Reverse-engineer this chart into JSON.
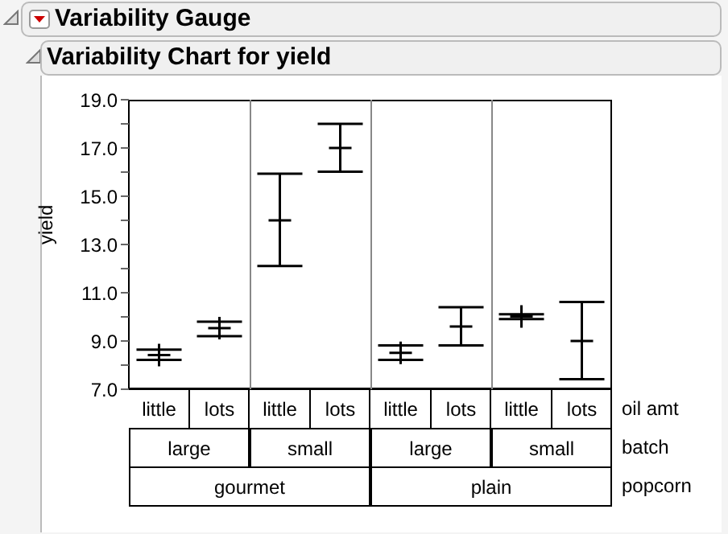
{
  "chart_data": {
    "type": "scatter",
    "title": "Variability Gauge",
    "subtitle": "Variability Chart for yield",
    "ylabel": "yield",
    "xlabel": "oil amt",
    "categories": [
      "little",
      "lots",
      "little",
      "lots",
      "little",
      "lots",
      "little",
      "lots"
    ],
    "values": [
      8.42,
      9.53,
      14.0,
      17.0,
      8.51,
      9.6,
      10.02,
      9.0
    ],
    "errors": [
      [
        8.22,
        8.64
      ],
      [
        9.2,
        9.8
      ],
      [
        12.11,
        15.93
      ],
      [
        16.02,
        18.0
      ],
      [
        8.22,
        8.82
      ],
      [
        8.82,
        10.4
      ],
      [
        9.91,
        10.11
      ],
      [
        7.42,
        10.62
      ]
    ],
    "color": "#000000",
    "marker": "cross",
    "annotations": [
      "large",
      "small",
      "large",
      "small",
      "gourmet",
      "plain",
      "batch",
      "popcorn"
    ],
    "ylim": [
      7,
      19
    ],
    "yticks": [
      {
        "value": 7,
        "label": "7.0"
      },
      {
        "value": 8,
        "label": null
      },
      {
        "value": 9,
        "label": "9.0"
      },
      {
        "value": 10,
        "label": null
      },
      {
        "value": 11,
        "label": "11.0"
      },
      {
        "value": 12,
        "label": null
      },
      {
        "value": 13,
        "label": "13.0"
      },
      {
        "value": 14,
        "label": null
      },
      {
        "value": 15,
        "label": "15.0"
      },
      {
        "value": 16,
        "label": null
      },
      {
        "value": 17,
        "label": "17.0"
      },
      {
        "value": 18,
        "label": null
      },
      {
        "value": 19,
        "label": "19.0"
      }
    ],
    "grid": false,
    "legend": false
  }
}
